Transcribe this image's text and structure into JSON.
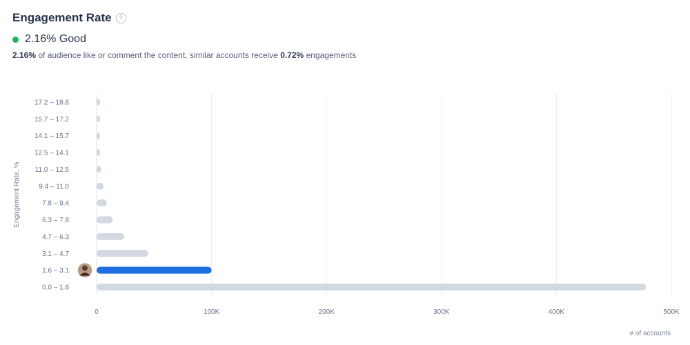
{
  "header": {
    "title": "Engagement Rate",
    "help_icon": "?",
    "rating_value": "2.16%",
    "rating_label": "Good",
    "status_color": "#1cb35a",
    "summary_value": "2.16%",
    "summary_middle": " of audience like or comment the content, similar accounts receive ",
    "summary_similar_value": "0.72%",
    "summary_end": " engagements"
  },
  "chart_data": {
    "type": "bar",
    "orientation": "horizontal",
    "categories": [
      "0.0 – 1.6",
      "1.6 – 3.1",
      "3.1 – 4.7",
      "4.7 – 6.3",
      "6.3 – 7.8",
      "7.8 – 9.4",
      "9.4 – 11.0",
      "11.0 – 12.5",
      "12.5 – 14.1",
      "14.1 – 15.7",
      "15.7 – 17.2",
      "17.2 – 18.8"
    ],
    "values": [
      478000,
      100000,
      45000,
      24000,
      14000,
      9000,
      6000,
      4000,
      3000,
      3000,
      3000,
      3000
    ],
    "highlight_index": 1,
    "highlight_color": "#1f6fe0",
    "bar_color": "#d2d9e1",
    "xlabel": "# of accounts",
    "ylabel": "Engagement Rate, %",
    "xlim": [
      0,
      500000
    ],
    "x_ticks": [
      0,
      100000,
      200000,
      300000,
      400000,
      500000
    ],
    "x_tick_labels": [
      "0",
      "100K",
      "200K",
      "300K",
      "400K",
      "500K"
    ],
    "grid": true
  }
}
